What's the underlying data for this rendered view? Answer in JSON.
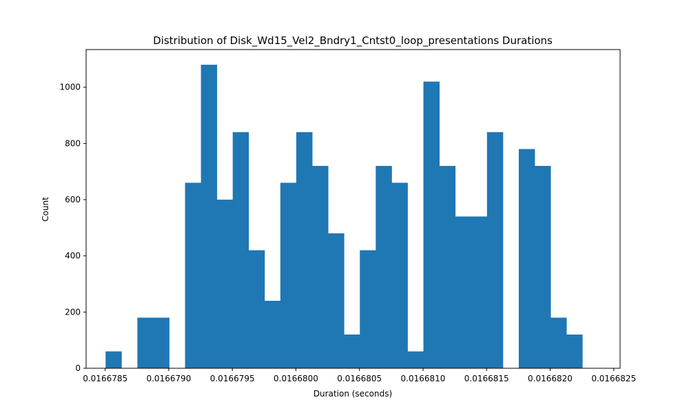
{
  "chart_data": {
    "type": "bar",
    "title": "Distribution of Disk_Wd15_Vel2_Bndry1_Cntst0_loop_presentations Durations",
    "xlabel": "Duration (seconds)",
    "ylabel": "Count",
    "xlim": [
      0.01667835,
      0.01668255
    ],
    "ylim": [
      0,
      1134
    ],
    "x_ticks": [
      0.0166785,
      0.016679,
      0.0166795,
      0.01668,
      0.0166805,
      0.016681,
      0.0166815,
      0.016682,
      0.0166825
    ],
    "x_tick_labels": [
      "0.0166785",
      "0.0166790",
      "0.0166795",
      "0.0166800",
      "0.0166805",
      "0.0166810",
      "0.0166815",
      "0.0166820",
      "0.0166825"
    ],
    "y_ticks": [
      0,
      200,
      400,
      600,
      800,
      1000
    ],
    "y_tick_labels": [
      "0",
      "200",
      "400",
      "600",
      "800",
      "1000"
    ],
    "bin_start": 0.016678503,
    "bin_width": 1.25e-07,
    "values": [
      60,
      0,
      180,
      180,
      0,
      660,
      1080,
      600,
      840,
      420,
      240,
      660,
      840,
      720,
      480,
      120,
      420,
      720,
      660,
      60,
      1020,
      720,
      540,
      540,
      840,
      0,
      780,
      720,
      180,
      120
    ],
    "bar_color": "#1f77b4",
    "grid": false
  }
}
